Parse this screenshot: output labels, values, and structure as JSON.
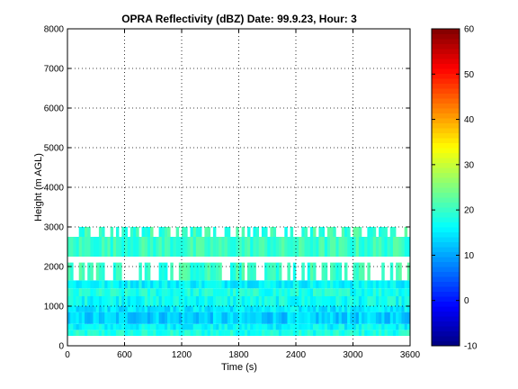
{
  "chart_data": {
    "type": "heatmap",
    "title": "OPRA Reflectivity (dBZ)  Date: 99.9.23, Hour: 3",
    "xlabel": "Time (s)",
    "ylabel": "Height (m AGL)",
    "xlim": [
      0,
      3600
    ],
    "ylim": [
      0,
      8000
    ],
    "x_ticks": [
      "0",
      "600",
      "1200",
      "1800",
      "2400",
      "3000",
      "3600"
    ],
    "y_ticks": [
      "0",
      "1000",
      "2000",
      "3000",
      "4000",
      "5000",
      "6000",
      "7000",
      "8000"
    ],
    "grid": true,
    "colorbar": {
      "range": [
        -10,
        60
      ],
      "ticks": [
        "-10",
        "0",
        "10",
        "20",
        "30",
        "40",
        "50",
        "60"
      ],
      "colormap": "jet"
    },
    "layers": [
      {
        "height_range": [
          250,
          400
        ],
        "dbz": 18
      },
      {
        "height_range": [
          400,
          550
        ],
        "dbz": 16
      },
      {
        "height_range": [
          550,
          850
        ],
        "dbz": 13
      },
      {
        "height_range": [
          850,
          1000
        ],
        "dbz": 15
      },
      {
        "height_range": [
          1000,
          1250
        ],
        "dbz": 17
      },
      {
        "height_range": [
          1250,
          1450
        ],
        "dbz": 18
      },
      {
        "height_range": [
          1450,
          1650
        ],
        "dbz": 16
      },
      {
        "height_range": [
          1650,
          2100
        ],
        "dbz": 20,
        "intermittent": true
      },
      {
        "height_range": [
          2250,
          2750
        ],
        "dbz": 20
      },
      {
        "height_range": [
          2750,
          3000
        ],
        "dbz": 20,
        "intermittent": true
      }
    ]
  }
}
